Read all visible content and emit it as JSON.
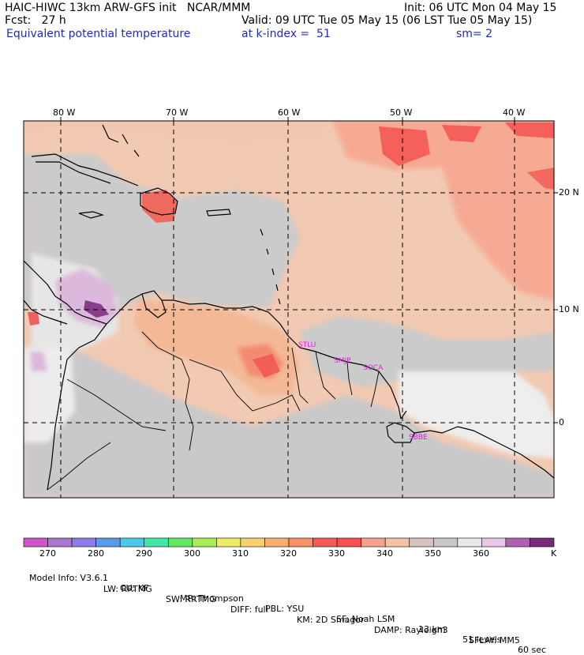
{
  "header": {
    "model_title": "HAIC-HIWC 13km ARW-GFS init   NCAR/MMM",
    "init": "Init: 06 UTC Mon 04 May 15",
    "fcst": "Fcst:   27 h",
    "valid": "Valid: 09 UTC Tue 05 May 15 (06 LST Tue 05 May 15)",
    "field": "Equivalent potential temperature",
    "k_index": "at k-index =  51",
    "sm": "sm= 2"
  },
  "map": {
    "lon_labels": [
      "80 W",
      "70 W",
      "60 W",
      "50 W",
      "40 W"
    ],
    "lat_labels": [
      "20 N",
      "10 N",
      "0"
    ],
    "sites": [
      "STLU",
      "SMJP",
      "SOCA",
      "SBBE"
    ]
  },
  "colorbar": {
    "colors": [
      "#cc55cc",
      "#aa77cc",
      "#8c7ee6",
      "#5a9ae6",
      "#4ac8e6",
      "#40e6a8",
      "#66e666",
      "#a8ec5a",
      "#ecec66",
      "#f8d070",
      "#f8b070",
      "#f89068",
      "#f85858",
      "#f85050",
      "#f6a090",
      "#f6c2a6",
      "#d4c4bc",
      "#c8c8c8",
      "#e8e8e8",
      "#e8c8e8",
      "#b060b0",
      "#7a2a7a"
    ],
    "tick_labels": [
      "270",
      "280",
      "290",
      "300",
      "310",
      "320",
      "330",
      "340",
      "350",
      "360"
    ],
    "unit": "K"
  },
  "footer": {
    "line1": [
      "Model Info: V3.6.1",
      "CU: KF",
      "MP: Thompson",
      "PBL: YSU",
      "SF: Noah LSM",
      "13 km",
      "51 levels",
      "60 sec"
    ],
    "line2": [
      "LW: RRTMG",
      "SW: RRTMG",
      "DIFF: full",
      "KM: 2D Smagor",
      "DAMP: Rayleigh3",
      "SFLAY: MM5"
    ]
  }
}
